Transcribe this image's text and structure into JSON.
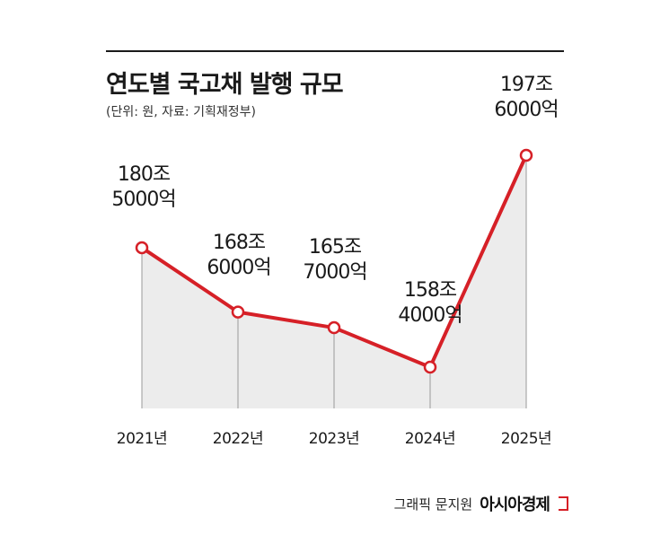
{
  "header": {
    "title": "연도별 국고채 발행 규모",
    "subtitle": "(단위: 원, 자료: 기획재정부)"
  },
  "credit": {
    "text": "그래픽 문지원",
    "brand": "아시아경제"
  },
  "colors": {
    "line": "#d62027",
    "area": "#ececec",
    "marker_fill": "#ffffff",
    "text": "#1a1a1a"
  },
  "chart_data": {
    "type": "line",
    "categories": [
      "2021년",
      "2022년",
      "2023년",
      "2024년",
      "2025년"
    ],
    "values": [
      180.5,
      168.6,
      165.7,
      158.4,
      197.6
    ],
    "data_labels": [
      [
        "180조",
        "5000억"
      ],
      [
        "168조",
        "6000억"
      ],
      [
        "165조",
        "7000억"
      ],
      [
        "158조",
        "4000억"
      ],
      [
        "197조",
        "6000억"
      ]
    ],
    "unit": "조 원",
    "area_fill": true,
    "grid": false,
    "legend": "none"
  }
}
